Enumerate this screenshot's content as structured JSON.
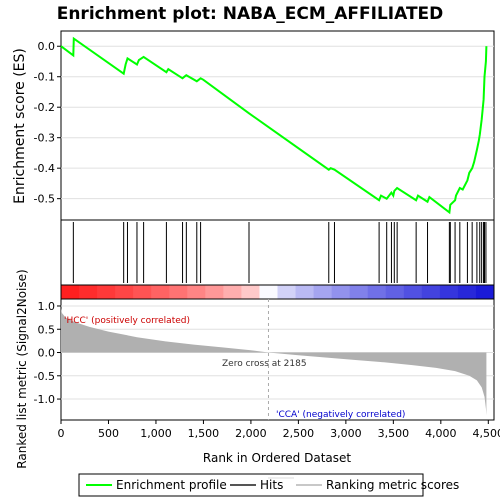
{
  "chart_data": {
    "type": "line",
    "title": "Enrichment plot: NABA_ECM_AFFILIATED",
    "es_panel": {
      "ylabel": "Enrichment score (ES)",
      "ylim": [
        -0.57,
        0.05
      ],
      "yticks": [
        "0.0",
        "-0.1",
        "-0.2",
        "-0.3",
        "-0.4",
        "-0.5"
      ],
      "ytick_values": [
        0.0,
        -0.1,
        -0.2,
        -0.3,
        -0.4,
        -0.5
      ],
      "series": [
        {
          "name": "Enrichment profile",
          "color": "#00ff00",
          "x": [
            0,
            130,
            135,
            660,
            680,
            700,
            800,
            820,
            870,
            1110,
            1130,
            1280,
            1300,
            1320,
            1430,
            1450,
            1470,
            1500,
            1980,
            2820,
            2840,
            2880,
            3350,
            3370,
            3430,
            3480,
            3500,
            3510,
            3540,
            3740,
            3760,
            3860,
            3880,
            4090,
            4100,
            4150,
            4160,
            4200,
            4230,
            4280,
            4300,
            4330,
            4350,
            4380,
            4400,
            4410,
            4430,
            4450,
            4460,
            4475,
            4480
          ],
          "y": [
            0.0,
            -0.03,
            0.025,
            -0.09,
            -0.06,
            -0.04,
            -0.06,
            -0.045,
            -0.035,
            -0.085,
            -0.075,
            -0.105,
            -0.1,
            -0.095,
            -0.115,
            -0.11,
            -0.105,
            -0.11,
            -0.22,
            -0.405,
            -0.4,
            -0.405,
            -0.505,
            -0.49,
            -0.5,
            -0.48,
            -0.49,
            -0.475,
            -0.465,
            -0.505,
            -0.49,
            -0.51,
            -0.495,
            -0.545,
            -0.52,
            -0.505,
            -0.49,
            -0.465,
            -0.47,
            -0.44,
            -0.415,
            -0.4,
            -0.38,
            -0.34,
            -0.31,
            -0.29,
            -0.24,
            -0.175,
            -0.1,
            -0.05,
            0.0
          ]
        }
      ]
    },
    "hits": {
      "name": "Hits",
      "x": [
        130,
        660,
        700,
        800,
        870,
        1110,
        1280,
        1320,
        1430,
        1470,
        1980,
        2820,
        2880,
        3350,
        3430,
        3480,
        3510,
        3540,
        3740,
        3860,
        4090,
        4100,
        4150,
        4200,
        4280,
        4330,
        4380,
        4410,
        4430,
        4450,
        4460,
        4475
      ]
    },
    "metric_panel": {
      "ylabel": "Ranked list metric (Signal2Noise)",
      "ylim": [
        -1.45,
        1.15
      ],
      "yticks": [
        "1.0",
        "0.5",
        "0.0",
        "-0.5",
        "-1.0"
      ],
      "ytick_values": [
        1.0,
        0.5,
        0.0,
        -0.5,
        -1.0
      ],
      "series": [
        {
          "name": "Ranking metric scores",
          "color": "#c0c0c0",
          "x": [
            0,
            10,
            50,
            150,
            300,
            500,
            800,
            1100,
            1400,
            1700,
            2000,
            2185,
            2500,
            2800,
            3100,
            3400,
            3700,
            3950,
            4150,
            4300,
            4380,
            4430,
            4460,
            4475,
            4480
          ],
          "y": [
            0.95,
            0.85,
            0.75,
            0.65,
            0.55,
            0.45,
            0.33,
            0.24,
            0.17,
            0.11,
            0.05,
            0.0,
            -0.06,
            -0.11,
            -0.16,
            -0.21,
            -0.27,
            -0.33,
            -0.4,
            -0.5,
            -0.6,
            -0.75,
            -0.95,
            -1.2,
            -1.35
          ]
        }
      ],
      "zero_cross_rank": 2185,
      "annotations": {
        "zero_cross": "Zero cross at 2185",
        "positive": "'HCC' (positively correlated)",
        "negative": "'CCA' (negatively correlated)"
      },
      "positive_color": "#ff0000",
      "negative_color": "#0000ff"
    },
    "xlabel": "Rank in Ordered Dataset",
    "xlim": [
      0,
      4560
    ],
    "xticks": [
      "0",
      "500",
      "1,000",
      "1,500",
      "2,000",
      "2,500",
      "3,000",
      "3,500",
      "4,000",
      "4,500"
    ],
    "xtick_values": [
      0,
      500,
      1000,
      1500,
      2000,
      2500,
      3000,
      3500,
      4000,
      4500
    ],
    "legend": {
      "placement": "bottom",
      "entries": [
        "Enrichment profile",
        "Hits",
        "Ranking metric scores"
      ]
    }
  }
}
